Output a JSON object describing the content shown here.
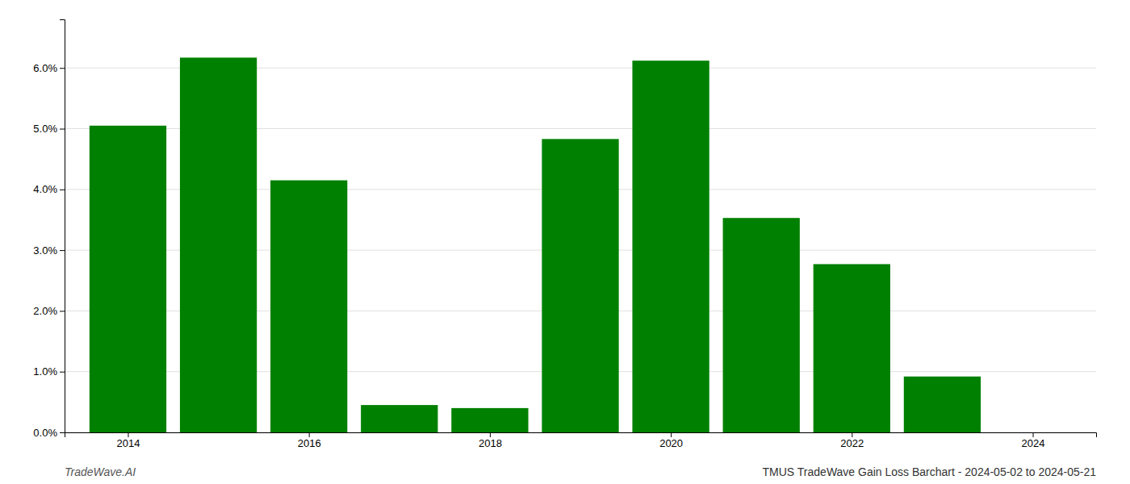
{
  "chart_data": {
    "type": "bar",
    "title": "TMUS TradeWave Gain Loss Barchart - 2024-05-02 to 2024-05-21",
    "annotations": [
      "TradeWave.AI"
    ],
    "x": [
      2014,
      2015,
      2016,
      2017,
      2018,
      2019,
      2020,
      2021,
      2022,
      2023,
      2024
    ],
    "values": [
      0.0505,
      0.0617,
      0.0415,
      0.0045,
      0.004,
      0.0483,
      0.0612,
      0.0353,
      0.0277,
      0.0092,
      0.0
    ],
    "color": "#008000",
    "xlim": [
      2013.3,
      2024.7
    ],
    "xticks": [
      2014,
      2016,
      2018,
      2020,
      2022,
      2024
    ],
    "ylim": [
      0.0,
      0.068
    ],
    "yticks": [
      {
        "value": 0.0,
        "label": "0.0%"
      },
      {
        "value": 0.01,
        "label": "1.0%"
      },
      {
        "value": 0.02,
        "label": "2.0%"
      },
      {
        "value": 0.03,
        "label": "3.0%"
      },
      {
        "value": 0.04,
        "label": "4.0%"
      },
      {
        "value": 0.05,
        "label": "5.0%"
      },
      {
        "value": 0.06,
        "label": "6.0%"
      }
    ],
    "grid": true
  }
}
